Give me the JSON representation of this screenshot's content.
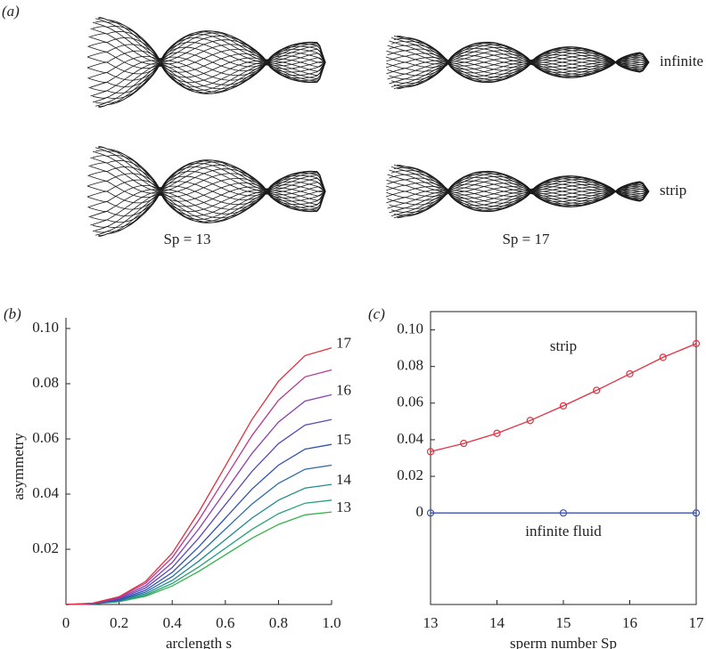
{
  "panel_a": {
    "label": "(a)",
    "row_labels": [
      "infinite",
      "strip"
    ],
    "column_labels": [
      "Sp = 13",
      "Sp = 17"
    ]
  },
  "chart_data": [
    {
      "type": "line",
      "panel_label": "(b)",
      "xlabel": "arclength s",
      "ylabel": "asymmetry",
      "x": [
        0,
        0.1,
        0.2,
        0.3,
        0.4,
        0.5,
        0.6,
        0.7,
        0.8,
        0.9,
        1.0
      ],
      "xlim": [
        0,
        1
      ],
      "ylim": [
        0,
        0.1
      ],
      "xticks": [
        0,
        0.2,
        0.4,
        0.6,
        0.8,
        {
          "value": 1,
          "label": "1.0"
        }
      ],
      "yticks": [
        0.02,
        0.04,
        0.06,
        0.08,
        {
          "value": 0.1,
          "label": "0.10"
        }
      ],
      "series": [
        {
          "name": "13",
          "color": "#33b24a",
          "values": [
            0,
            0.0002,
            0.001,
            0.003,
            0.0067,
            0.012,
            0.018,
            0.024,
            0.029,
            0.0325,
            0.0335
          ]
        },
        {
          "color": "#2aa17a",
          "values": [
            0,
            0.0002,
            0.0011,
            0.0034,
            0.0076,
            0.0136,
            0.0204,
            0.0272,
            0.0329,
            0.0367,
            0.0378
          ]
        },
        {
          "name": "14",
          "color": "#1f8b8e",
          "values": [
            0,
            0.0002,
            0.0013,
            0.0039,
            0.0087,
            0.0157,
            0.0235,
            0.0313,
            0.0378,
            0.0422,
            0.0435
          ]
        },
        {
          "color": "#2a6aa8",
          "values": [
            0,
            0.0003,
            0.0015,
            0.0045,
            0.0101,
            0.0182,
            0.0273,
            0.0364,
            0.0439,
            0.049,
            0.0505
          ]
        },
        {
          "name": "15",
          "color": "#3050b8",
          "values": [
            0,
            0.0003,
            0.0017,
            0.0052,
            0.0116,
            0.0209,
            0.0313,
            0.0418,
            0.0505,
            0.0563,
            0.058
          ]
        },
        {
          "color": "#5a4ab8",
          "values": [
            0,
            0.0003,
            0.002,
            0.006,
            0.0134,
            0.0241,
            0.0362,
            0.0482,
            0.0583,
            0.065,
            0.067
          ]
        },
        {
          "name": "16",
          "color": "#8a40b0",
          "values": [
            0,
            0.0004,
            0.0023,
            0.0068,
            0.0152,
            0.0274,
            0.041,
            0.0547,
            0.0661,
            0.0737,
            0.076
          ]
        },
        {
          "color": "#b83a90",
          "values": [
            0,
            0.0004,
            0.0026,
            0.0077,
            0.017,
            0.0306,
            0.0459,
            0.0612,
            0.074,
            0.0825,
            0.085
          ]
        },
        {
          "name": "17",
          "color": "#e03040",
          "values": [
            0,
            0.0005,
            0.0028,
            0.0084,
            0.0186,
            0.0335,
            0.0502,
            0.067,
            0.0809,
            0.0902,
            0.093
          ]
        }
      ]
    },
    {
      "type": "line",
      "panel_label": "(c)",
      "xlabel": "sperm number Sp",
      "xlim": [
        13,
        17
      ],
      "ylim": [
        -0.05,
        0.11
      ],
      "xticks": [
        13,
        14,
        15,
        16,
        17
      ],
      "yticks": [
        0,
        0.02,
        0.04,
        0.06,
        0.08,
        {
          "value": 0.1,
          "label": "0.10"
        }
      ],
      "series": [
        {
          "name": "strip",
          "color": "#e03040",
          "x": [
            13,
            13.5,
            14,
            14.5,
            15,
            15.5,
            16,
            16.5,
            17
          ],
          "values": [
            0.0335,
            0.038,
            0.0435,
            0.0505,
            0.0585,
            0.067,
            0.076,
            0.085,
            0.0925
          ]
        },
        {
          "name": "infinite fluid",
          "color": "#3a50b0",
          "x": [
            13,
            15,
            17
          ],
          "values": [
            0,
            0,
            0
          ]
        }
      ]
    }
  ]
}
